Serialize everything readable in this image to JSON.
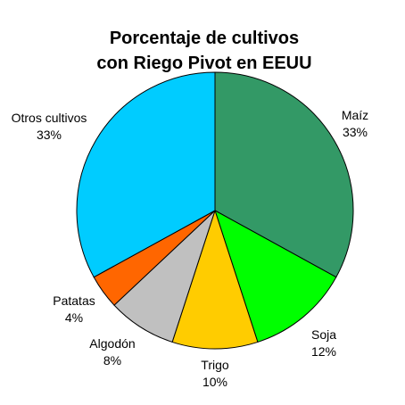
{
  "chart_data": {
    "type": "pie",
    "title": [
      "Porcentaje de cultivos",
      "con Riego Pivot en EEUU"
    ],
    "slices": [
      {
        "label": "Maíz",
        "value": 33,
        "value_label": "33%",
        "color": "#339966"
      },
      {
        "label": "Soja",
        "value": 12,
        "value_label": "12%",
        "color": "#00ff00"
      },
      {
        "label": "Trigo",
        "value": 10,
        "value_label": "10%",
        "color": "#ffcc00"
      },
      {
        "label": "Algodón",
        "value": 8,
        "value_label": "8%",
        "color": "#c0c0c0"
      },
      {
        "label": "Patatas",
        "value": 4,
        "value_label": "4%",
        "color": "#ff6600"
      },
      {
        "label": "Otros cultivos",
        "value": 33,
        "value_label": "33%",
        "color": "#00ccff"
      }
    ],
    "start_angle": "12 o'clock",
    "direction": "clockwise",
    "outline_color": "#000000"
  }
}
